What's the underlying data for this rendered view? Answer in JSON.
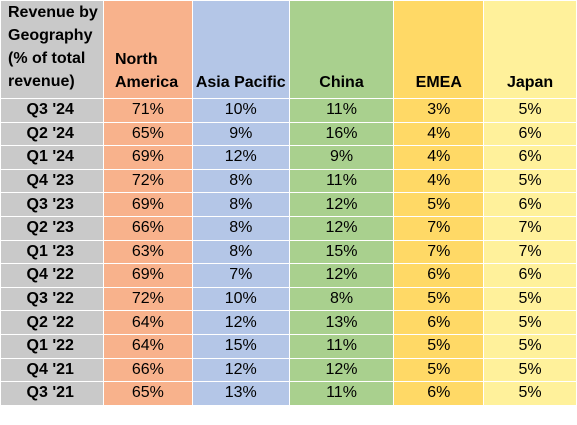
{
  "chart_data": {
    "type": "table",
    "title": "Revenue by Geography (% of total revenue)",
    "columns": [
      "North America",
      "Asia Pacific",
      "China",
      "EMEA",
      "Japan"
    ],
    "column_colors": [
      "#f8b28c",
      "#b4c6e7",
      "#a9d08e",
      "#ffd966",
      "#fff19b"
    ],
    "row_header_color": "#c9c9c9",
    "rows": [
      {
        "label": "Q3 '24",
        "values": [
          "71%",
          "10%",
          "11%",
          "3%",
          "5%"
        ]
      },
      {
        "label": "Q2 '24",
        "values": [
          "65%",
          "9%",
          "16%",
          "4%",
          "6%"
        ]
      },
      {
        "label": "Q1 '24",
        "values": [
          "69%",
          "12%",
          "9%",
          "4%",
          "6%"
        ]
      },
      {
        "label": "Q4 '23",
        "values": [
          "72%",
          "8%",
          "11%",
          "4%",
          "5%"
        ]
      },
      {
        "label": "Q3 '23",
        "values": [
          "69%",
          "8%",
          "12%",
          "5%",
          "6%"
        ]
      },
      {
        "label": "Q2 '23",
        "values": [
          "66%",
          "8%",
          "12%",
          "7%",
          "7%"
        ]
      },
      {
        "label": "Q1 '23",
        "values": [
          "63%",
          "8%",
          "15%",
          "7%",
          "7%"
        ]
      },
      {
        "label": "Q4 '22",
        "values": [
          "69%",
          "7%",
          "12%",
          "6%",
          "6%"
        ]
      },
      {
        "label": "Q3 '22",
        "values": [
          "72%",
          "10%",
          "8%",
          "5%",
          "5%"
        ]
      },
      {
        "label": "Q2 '22",
        "values": [
          "64%",
          "12%",
          "13%",
          "6%",
          "5%"
        ]
      },
      {
        "label": "Q1 '22",
        "values": [
          "64%",
          "15%",
          "11%",
          "5%",
          "5%"
        ]
      },
      {
        "label": "Q4 '21",
        "values": [
          "66%",
          "12%",
          "12%",
          "5%",
          "5%"
        ]
      },
      {
        "label": "Q3 '21",
        "values": [
          "65%",
          "13%",
          "11%",
          "6%",
          "5%"
        ]
      }
    ]
  }
}
